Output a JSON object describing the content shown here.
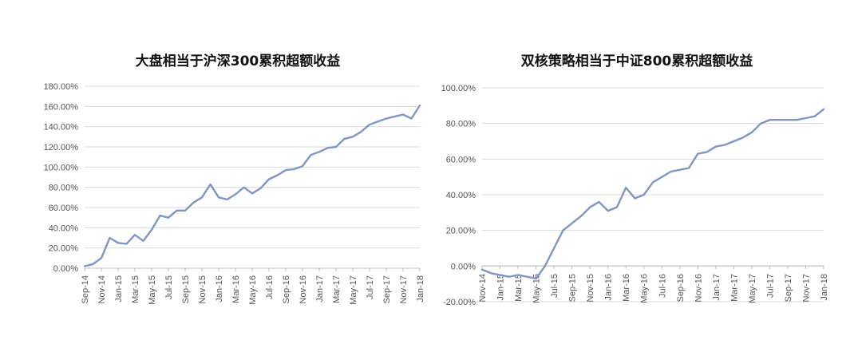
{
  "chart_data": [
    {
      "type": "line",
      "title": "大盘相当于沪深300累积超额收益",
      "xlabel": "",
      "ylabel": "",
      "ylim": [
        0,
        180
      ],
      "yticks": [
        "0.00%",
        "20.00%",
        "40.00%",
        "60.00%",
        "80.00%",
        "100.00%",
        "120.00%",
        "140.00%",
        "160.00%",
        "180.00%"
      ],
      "xticks": [
        "Sep-14",
        "Nov-14",
        "Jan-15",
        "Mar-15",
        "May-15",
        "Jul-15",
        "Sep-15",
        "Nov-15",
        "Jan-16",
        "Mar-16",
        "May-16",
        "Jul-16",
        "Sep-16",
        "Nov-16",
        "Jan-17",
        "Mar-17",
        "May-17",
        "Jul-17",
        "Sep-17",
        "Nov-17",
        "Jan-18"
      ],
      "grid": true,
      "legend": "none",
      "series": [
        {
          "color": "#7f96c0",
          "x": [
            "Sep-14",
            "Oct-14",
            "Nov-14",
            "Dec-14",
            "Jan-15",
            "Feb-15",
            "Mar-15",
            "Apr-15",
            "May-15",
            "Jun-15",
            "Jul-15",
            "Aug-15",
            "Sep-15",
            "Oct-15",
            "Nov-15",
            "Dec-15",
            "Jan-16",
            "Feb-16",
            "Mar-16",
            "Apr-16",
            "May-16",
            "Jun-16",
            "Jul-16",
            "Aug-16",
            "Sep-16",
            "Oct-16",
            "Nov-16",
            "Dec-16",
            "Jan-17",
            "Feb-17",
            "Mar-17",
            "Apr-17",
            "May-17",
            "Jun-17",
            "Jul-17",
            "Aug-17",
            "Sep-17",
            "Oct-17",
            "Nov-17",
            "Dec-17",
            "Jan-18"
          ],
          "values": [
            2,
            4,
            10,
            30,
            25,
            24,
            33,
            27,
            38,
            52,
            50,
            57,
            57,
            65,
            70,
            83,
            70,
            68,
            73,
            80,
            74,
            79,
            88,
            92,
            97,
            98,
            101,
            112,
            115,
            119,
            120,
            128,
            130,
            135,
            142,
            145,
            148,
            150,
            152,
            148,
            161
          ]
        }
      ]
    },
    {
      "type": "line",
      "title": "双核策略相当于中证800累积超额收益",
      "xlabel": "",
      "ylabel": "",
      "ylim": [
        -20,
        100
      ],
      "yticks": [
        "-20.00%",
        "0.00%",
        "20.00%",
        "40.00%",
        "60.00%",
        "80.00%",
        "100.00%"
      ],
      "xticks": [
        "Nov-14",
        "Jan-15",
        "Mar-15",
        "May-15",
        "Jul-15",
        "Sep-15",
        "Nov-15",
        "Jan-16",
        "Mar-16",
        "May-16",
        "Jul-16",
        "Sep-16",
        "Nov-16",
        "Jan-17",
        "Mar-17",
        "May-17",
        "Jul-17",
        "Sep-17",
        "Nov-17",
        "Jan-18"
      ],
      "grid": true,
      "legend": "none",
      "series": [
        {
          "color": "#7f96c0",
          "x": [
            "Nov-14",
            "Dec-14",
            "Jan-15",
            "Feb-15",
            "Mar-15",
            "Apr-15",
            "May-15",
            "Jun-15",
            "Jul-15",
            "Aug-15",
            "Sep-15",
            "Oct-15",
            "Nov-15",
            "Dec-15",
            "Jan-16",
            "Feb-16",
            "Mar-16",
            "Apr-16",
            "May-16",
            "Jun-16",
            "Jul-16",
            "Aug-16",
            "Sep-16",
            "Oct-16",
            "Nov-16",
            "Dec-16",
            "Jan-17",
            "Feb-17",
            "Mar-17",
            "Apr-17",
            "May-17",
            "Jun-17",
            "Jul-17",
            "Aug-17",
            "Sep-17",
            "Oct-17",
            "Nov-17",
            "Dec-17",
            "Jan-18"
          ],
          "values": [
            -2,
            -4,
            -5,
            -6,
            -5,
            -6,
            -7,
            0,
            10,
            20,
            24,
            28,
            33,
            36,
            31,
            33,
            44,
            38,
            40,
            47,
            50,
            53,
            54,
            55,
            63,
            64,
            67,
            68,
            70,
            72,
            75,
            80,
            82,
            82,
            82,
            82,
            83,
            84,
            88
          ]
        }
      ]
    }
  ]
}
